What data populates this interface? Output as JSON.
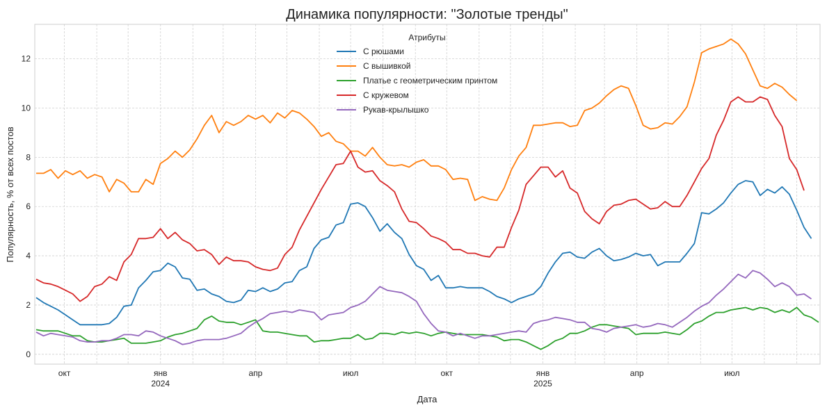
{
  "chart_data": {
    "type": "line",
    "title": "Динамика популярности: \"Золотые тренды\"",
    "xlabel": "Дата",
    "ylabel": "Популярность, % от всех постов",
    "legend_title": "Атрибуты",
    "legend_position": "top-center",
    "grid": true,
    "ylim": [
      -0.4,
      13.4
    ],
    "yticks": [
      0,
      2,
      4,
      6,
      8,
      10,
      12
    ],
    "x_start": "2023-09-04",
    "x_end": "2025-09-22",
    "x_step_days": 7,
    "xticks": [
      {
        "date": "2023-10-01",
        "label": "окт",
        "sub": ""
      },
      {
        "date": "2024-01-01",
        "label": "янв",
        "sub": "2024"
      },
      {
        "date": "2024-04-01",
        "label": "апр",
        "sub": ""
      },
      {
        "date": "2024-07-01",
        "label": "июл",
        "sub": ""
      },
      {
        "date": "2024-10-01",
        "label": "окт",
        "sub": ""
      },
      {
        "date": "2025-01-01",
        "label": "янв",
        "sub": "2025"
      },
      {
        "date": "2025-04-01",
        "label": "апр",
        "sub": ""
      },
      {
        "date": "2025-07-01",
        "label": "июл",
        "sub": ""
      }
    ],
    "series": [
      {
        "name": "С рюшами",
        "color": "#1f77b4",
        "values": [
          2.3,
          2.1,
          1.95,
          1.8,
          1.6,
          1.4,
          1.2,
          1.2,
          1.2,
          1.2,
          1.25,
          1.5,
          1.95,
          2.0,
          2.7,
          3.0,
          3.35,
          3.4,
          3.7,
          3.55,
          3.1,
          3.05,
          2.6,
          2.65,
          2.45,
          2.35,
          2.15,
          2.1,
          2.2,
          2.6,
          2.55,
          2.7,
          2.55,
          2.65,
          2.9,
          2.95,
          3.4,
          3.55,
          4.3,
          4.65,
          4.75,
          5.25,
          5.35,
          6.1,
          6.15,
          6.0,
          5.55,
          5.0,
          5.3,
          4.95,
          4.7,
          4.05,
          3.6,
          3.45,
          3.0,
          3.2,
          2.7,
          2.7,
          2.75,
          2.7,
          2.7,
          2.7,
          2.55,
          2.35,
          2.25,
          2.1,
          2.25,
          2.35,
          2.45,
          2.75,
          3.3,
          3.75,
          4.1,
          4.15,
          3.95,
          3.9,
          4.15,
          4.3,
          4.0,
          3.8,
          3.85,
          3.95,
          4.1,
          4.0,
          4.05,
          3.6,
          3.75,
          3.75,
          3.75,
          4.1,
          4.5,
          5.75,
          5.7,
          5.9,
          6.15,
          6.55,
          6.9,
          7.05,
          7.0,
          6.45,
          6.7,
          6.55,
          6.8,
          6.5,
          5.85,
          5.15,
          4.7
        ]
      },
      {
        "name": "С вышивкой",
        "color": "#ff7f0e",
        "values": [
          7.35,
          7.35,
          7.5,
          7.15,
          7.45,
          7.3,
          7.45,
          7.15,
          7.3,
          7.2,
          6.6,
          7.1,
          6.95,
          6.6,
          6.6,
          7.1,
          6.9,
          7.75,
          7.95,
          8.25,
          8.0,
          8.3,
          8.75,
          9.3,
          9.7,
          9.0,
          9.45,
          9.3,
          9.45,
          9.7,
          9.55,
          9.7,
          9.4,
          9.8,
          9.6,
          9.9,
          9.8,
          9.55,
          9.25,
          8.85,
          9.0,
          8.65,
          8.55,
          8.25,
          8.25,
          8.05,
          8.4,
          8.0,
          7.7,
          7.65,
          7.7,
          7.6,
          7.8,
          7.9,
          7.65,
          7.65,
          7.5,
          7.1,
          7.15,
          7.1,
          6.25,
          6.4,
          6.3,
          6.25,
          6.75,
          7.5,
          8.05,
          8.4,
          9.3,
          9.3,
          9.35,
          9.4,
          9.4,
          9.25,
          9.3,
          9.9,
          10.0,
          10.2,
          10.5,
          10.75,
          10.9,
          10.8,
          10.1,
          9.3,
          9.15,
          9.2,
          9.4,
          9.35,
          9.65,
          10.05,
          11.05,
          12.25,
          12.4,
          12.5,
          12.6,
          12.8,
          12.6,
          12.2,
          11.55,
          10.9,
          10.8,
          11.0,
          10.85,
          10.55,
          10.3
        ]
      },
      {
        "name": "Платье с геометрическим принтом",
        "color": "#2ca02c",
        "values": [
          1.0,
          0.95,
          0.95,
          0.95,
          0.85,
          0.75,
          0.75,
          0.55,
          0.5,
          0.5,
          0.55,
          0.6,
          0.65,
          0.45,
          0.45,
          0.45,
          0.5,
          0.55,
          0.7,
          0.8,
          0.85,
          0.95,
          1.05,
          1.4,
          1.55,
          1.35,
          1.3,
          1.3,
          1.2,
          1.3,
          1.4,
          0.95,
          0.9,
          0.9,
          0.85,
          0.8,
          0.75,
          0.75,
          0.5,
          0.55,
          0.55,
          0.6,
          0.65,
          0.65,
          0.8,
          0.6,
          0.65,
          0.85,
          0.85,
          0.8,
          0.9,
          0.85,
          0.9,
          0.85,
          0.75,
          0.85,
          0.9,
          0.85,
          0.8,
          0.8,
          0.8,
          0.8,
          0.75,
          0.7,
          0.55,
          0.6,
          0.6,
          0.5,
          0.35,
          0.2,
          0.35,
          0.55,
          0.65,
          0.85,
          0.85,
          0.95,
          1.1,
          1.2,
          1.2,
          1.15,
          1.1,
          1.05,
          0.8,
          0.85,
          0.85,
          0.85,
          0.9,
          0.85,
          0.8,
          1.0,
          1.25,
          1.35,
          1.55,
          1.7,
          1.7,
          1.8,
          1.85,
          1.9,
          1.8,
          1.9,
          1.85,
          1.7,
          1.8,
          1.7,
          1.9,
          1.6,
          1.5,
          1.3
        ]
      },
      {
        "name": "С кружевом",
        "color": "#d62728",
        "values": [
          3.05,
          2.9,
          2.85,
          2.75,
          2.6,
          2.45,
          2.15,
          2.35,
          2.75,
          2.85,
          3.15,
          3.0,
          3.75,
          4.05,
          4.7,
          4.7,
          4.75,
          5.1,
          4.7,
          4.95,
          4.65,
          4.5,
          4.2,
          4.25,
          4.05,
          3.65,
          3.95,
          3.8,
          3.8,
          3.75,
          3.55,
          3.45,
          3.4,
          3.5,
          4.05,
          4.35,
          5.05,
          5.6,
          6.15,
          6.7,
          7.2,
          7.7,
          7.75,
          8.25,
          7.6,
          7.4,
          7.45,
          7.05,
          6.85,
          6.6,
          5.9,
          5.4,
          5.35,
          5.1,
          4.8,
          4.7,
          4.55,
          4.25,
          4.25,
          4.1,
          4.1,
          4.0,
          3.95,
          4.35,
          4.35,
          5.15,
          5.85,
          6.9,
          7.25,
          7.6,
          7.6,
          7.2,
          7.45,
          6.75,
          6.55,
          5.8,
          5.5,
          5.3,
          5.8,
          6.05,
          6.1,
          6.25,
          6.3,
          6.1,
          5.9,
          5.95,
          6.2,
          6.0,
          6.0,
          6.45,
          7.0,
          7.55,
          7.95,
          8.9,
          9.5,
          10.25,
          10.45,
          10.25,
          10.25,
          10.45,
          10.35,
          9.7,
          9.25,
          7.95,
          7.5,
          6.65
        ]
      },
      {
        "name": "Рукав-крылышко",
        "color": "#9467bd",
        "values": [
          0.9,
          0.75,
          0.85,
          0.8,
          0.75,
          0.7,
          0.55,
          0.5,
          0.5,
          0.55,
          0.55,
          0.65,
          0.8,
          0.8,
          0.75,
          0.95,
          0.9,
          0.75,
          0.65,
          0.55,
          0.4,
          0.45,
          0.55,
          0.6,
          0.6,
          0.6,
          0.65,
          0.75,
          0.85,
          1.1,
          1.3,
          1.45,
          1.65,
          1.7,
          1.75,
          1.7,
          1.8,
          1.75,
          1.7,
          1.4,
          1.6,
          1.65,
          1.7,
          1.9,
          2.0,
          2.15,
          2.45,
          2.75,
          2.6,
          2.55,
          2.5,
          2.35,
          2.15,
          1.65,
          1.25,
          0.95,
          0.9,
          0.75,
          0.85,
          0.75,
          0.65,
          0.75,
          0.75,
          0.8,
          0.85,
          0.9,
          0.95,
          0.9,
          1.25,
          1.35,
          1.4,
          1.5,
          1.45,
          1.4,
          1.3,
          1.3,
          1.05,
          1.0,
          0.9,
          1.05,
          1.1,
          1.15,
          1.2,
          1.1,
          1.15,
          1.25,
          1.2,
          1.1,
          1.3,
          1.5,
          1.75,
          1.95,
          2.1,
          2.4,
          2.65,
          2.95,
          3.25,
          3.1,
          3.4,
          3.3,
          3.05,
          2.75,
          2.9,
          2.75,
          2.4,
          2.45,
          2.25
        ]
      }
    ]
  }
}
